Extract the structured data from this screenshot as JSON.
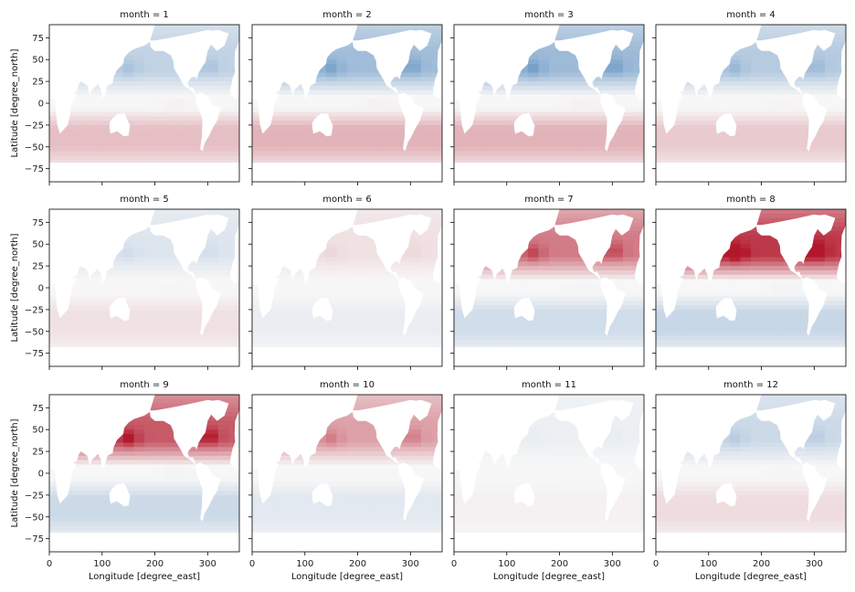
{
  "chart_data": {
    "type": "heatmap",
    "layout": "small-multiples",
    "rows": 3,
    "cols": 4,
    "shared_axes": true,
    "colormap": "RdBu_r",
    "xlabel": "Longitude [degree_east]",
    "ylabel": "Latitude [degree_north]",
    "xlim": [
      0,
      360
    ],
    "ylim": [
      -90,
      90
    ],
    "xticks": [
      0,
      100,
      200,
      300
    ],
    "xtick_labels": [
      "0",
      "100",
      "200",
      "300"
    ],
    "yticks": [
      75,
      50,
      25,
      0,
      -25,
      -50,
      -75
    ],
    "ytick_labels": [
      "75",
      "50",
      "25",
      "0",
      "−25",
      "−50",
      "−75"
    ],
    "panels": [
      {
        "title": "month = 1",
        "month": 1,
        "north": -0.25,
        "south": 0.25
      },
      {
        "title": "month = 2",
        "month": 2,
        "north": -0.4,
        "south": 0.3
      },
      {
        "title": "month = 3",
        "month": 3,
        "north": -0.42,
        "south": 0.3
      },
      {
        "title": "month = 4",
        "month": 4,
        "north": -0.3,
        "south": 0.2
      },
      {
        "title": "month = 5",
        "month": 5,
        "north": -0.12,
        "south": 0.1
      },
      {
        "title": "month = 6",
        "month": 6,
        "north": 0.1,
        "south": -0.06
      },
      {
        "title": "month = 7",
        "month": 7,
        "north": 0.55,
        "south": -0.18
      },
      {
        "title": "month = 8",
        "month": 8,
        "north": 0.85,
        "south": -0.22
      },
      {
        "title": "month = 9",
        "month": 9,
        "north": 0.7,
        "south": -0.2
      },
      {
        "title": "month = 10",
        "month": 10,
        "north": 0.38,
        "south": -0.1
      },
      {
        "title": "month = 11",
        "month": 11,
        "north": -0.05,
        "south": 0.03
      },
      {
        "title": "month = 12",
        "month": 12,
        "north": -0.2,
        "south": 0.12
      }
    ]
  },
  "colors": {
    "warm": "#b2182b",
    "cool": "#2166ac",
    "land": "#ffffff",
    "neutral": "#f7f7f7"
  }
}
